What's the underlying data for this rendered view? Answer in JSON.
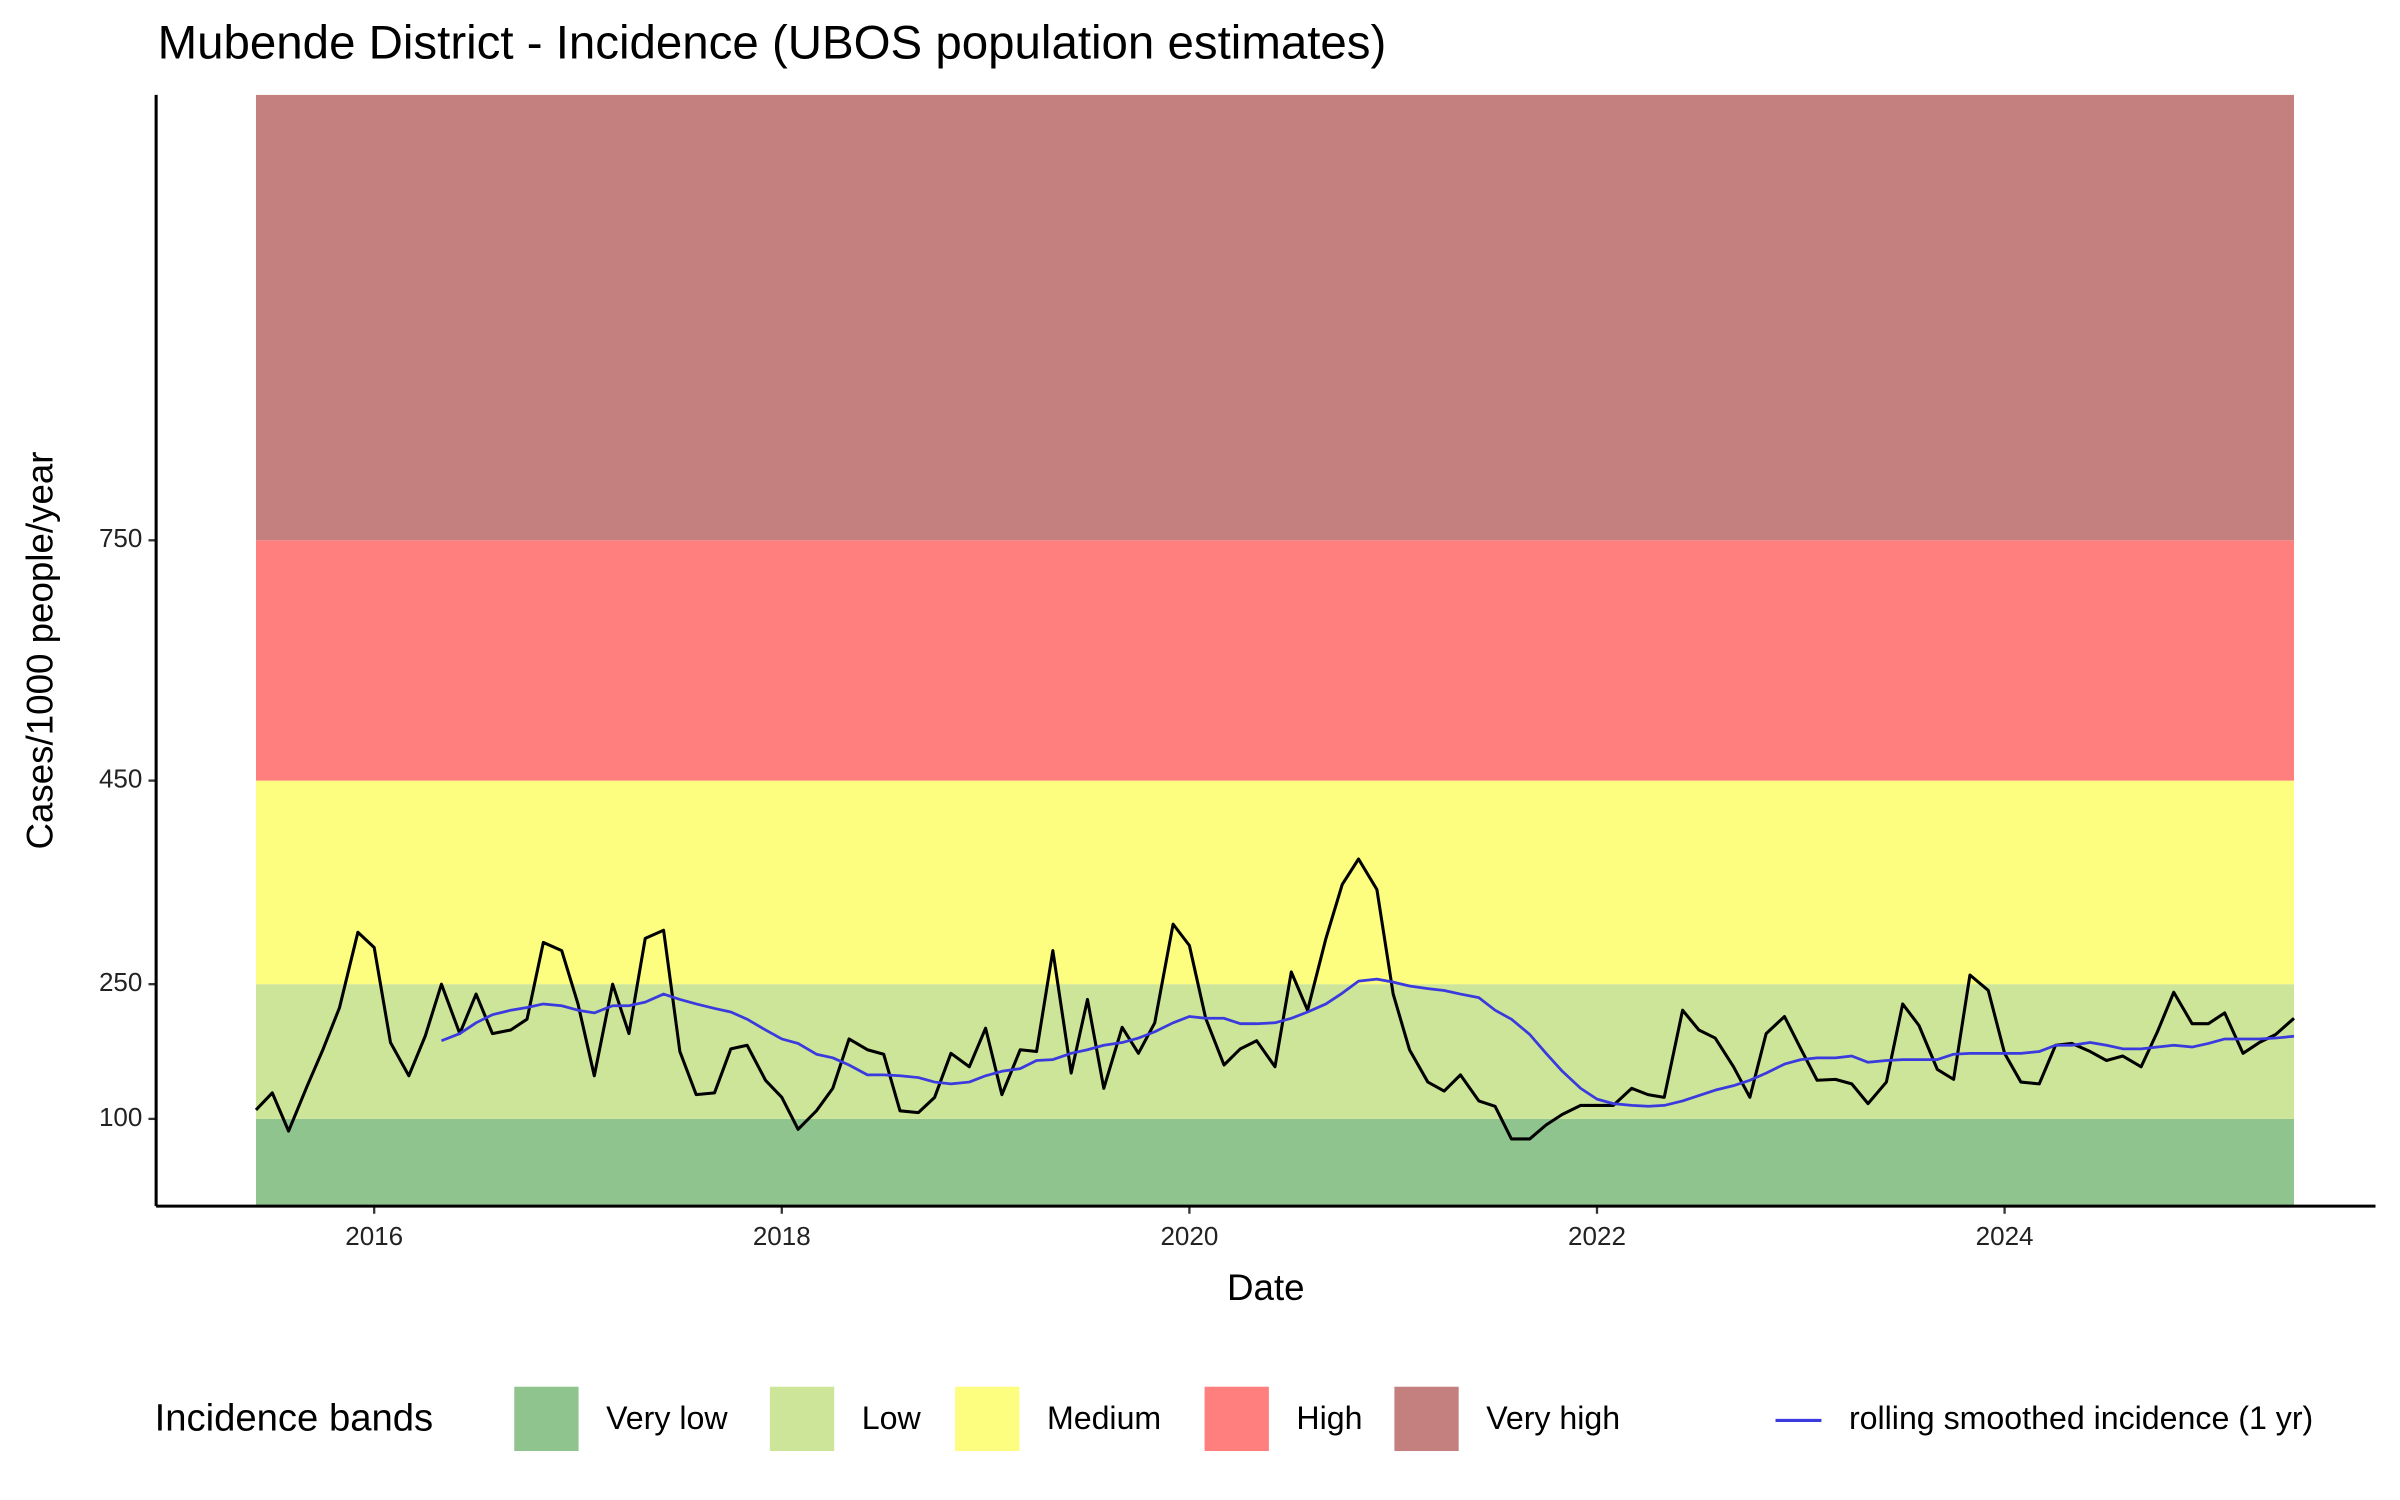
{
  "chart_data": {
    "type": "line",
    "title": "Mubende District - Incidence (UBOS population estimates)",
    "x_label": "Date",
    "y_label": "Cases/1000 people/year",
    "xlim": [
      2014.93,
      2025.82
    ],
    "xticks": [
      2016,
      2018,
      2020,
      2022,
      2024
    ],
    "ylim": [
      0,
      1300
    ],
    "yticks": [
      100,
      250,
      450,
      750
    ],
    "legend_title": "Incidence bands",
    "bands": [
      {
        "name": "Very low",
        "color": "#8fc48f",
        "from": 0,
        "to": 100
      },
      {
        "name": "Low",
        "color": "#cde598",
        "from": 100,
        "to": 250
      },
      {
        "name": "Medium",
        "color": "#fdfd7f",
        "from": 250,
        "to": 450
      },
      {
        "name": "High",
        "color": "#ff7f7f",
        "from": 450,
        "to": 750
      },
      {
        "name": "Very high",
        "color": "#c47f7f",
        "from": 750,
        "to": 1300
      }
    ],
    "x": [
      2015.42,
      2015.5,
      2015.58,
      2015.67,
      2015.75,
      2015.83,
      2015.92,
      2016,
      2016.08,
      2016.17,
      2016.25,
      2016.33,
      2016.42,
      2016.5,
      2016.58,
      2016.67,
      2016.75,
      2016.83,
      2016.92,
      2017,
      2017.08,
      2017.17,
      2017.25,
      2017.33,
      2017.42,
      2017.5,
      2017.58,
      2017.67,
      2017.75,
      2017.83,
      2017.92,
      2018,
      2018.08,
      2018.17,
      2018.25,
      2018.33,
      2018.42,
      2018.5,
      2018.58,
      2018.67,
      2018.75,
      2018.83,
      2018.92,
      2019,
      2019.08,
      2019.17,
      2019.25,
      2019.33,
      2019.42,
      2019.5,
      2019.58,
      2019.67,
      2019.75,
      2019.83,
      2019.92,
      2020,
      2020.08,
      2020.17,
      2020.25,
      2020.33,
      2020.42,
      2020.5,
      2020.58,
      2020.67,
      2020.75,
      2020.83,
      2020.92,
      2021,
      2021.08,
      2021.17,
      2021.25,
      2021.33,
      2021.42,
      2021.5,
      2021.58,
      2021.67,
      2021.75,
      2021.83,
      2021.92,
      2022,
      2022.08,
      2022.17,
      2022.25,
      2022.33,
      2022.42,
      2022.5,
      2022.58,
      2022.67,
      2022.75,
      2022.83,
      2022.92,
      2023,
      2023.08,
      2023.17,
      2023.25,
      2023.33,
      2023.42,
      2023.5,
      2023.58,
      2023.67,
      2023.75,
      2023.83,
      2023.92,
      2024,
      2024.08,
      2024.17,
      2024.25,
      2024.33,
      2024.42,
      2024.5,
      2024.58,
      2024.67,
      2024.75,
      2024.83,
      2024.92,
      2025,
      2025.08,
      2025.17,
      2025.25,
      2025.33,
      2025.42
    ],
    "series": [
      {
        "color": "#000000",
        "values": [
          110,
          129,
          86,
          136,
          178,
          224,
          301,
          286,
          185,
          148,
          192,
          250,
          195,
          239,
          195,
          199,
          211,
          291,
          283,
          228,
          148,
          250,
          195,
          295,
          303,
          175,
          127,
          129,
          178,
          182,
          143,
          124,
          88,
          109,
          134,
          189,
          177,
          172,
          109,
          107,
          124,
          173,
          158,
          201,
          127,
          177,
          175,
          283,
          151,
          233,
          134,
          202,
          173,
          207,
          309,
          288,
          212,
          160,
          178,
          187,
          158,
          262,
          221,
          295,
          348,
          373,
          343,
          239,
          177,
          141,
          131,
          149,
          120,
          114,
          77,
          77,
          93,
          105,
          115,
          115,
          115,
          134,
          127,
          124,
          221,
          199,
          190,
          158,
          124,
          195,
          214,
          178,
          143,
          144,
          139,
          117,
          141,
          228,
          204,
          155,
          144,
          259,
          243,
          173,
          141,
          139,
          182,
          184,
          175,
          165,
          170,
          158,
          197,
          241,
          206,
          206,
          218,
          173,
          185,
          194,
          212
        ]
      },
      {
        "name": "rolling smoothed incidence (1 yr)",
        "color": "#3a3ade",
        "values": [
          null,
          null,
          null,
          null,
          null,
          null,
          null,
          null,
          null,
          null,
          null,
          187,
          195,
          207,
          216,
          221,
          224,
          228,
          226,
          221,
          218,
          226,
          226,
          230,
          239,
          233,
          228,
          223,
          219,
          211,
          199,
          189,
          184,
          172,
          168,
          160,
          149,
          149,
          148,
          146,
          141,
          139,
          141,
          148,
          153,
          156,
          165,
          166,
          173,
          177,
          182,
          185,
          190,
          197,
          207,
          214,
          212,
          212,
          206,
          206,
          207,
          212,
          219,
          228,
          240,
          253,
          255,
          252,
          248,
          245,
          243,
          239,
          235,
          221,
          211,
          194,
          173,
          153,
          134,
          122,
          117,
          115,
          114,
          115,
          120,
          126,
          132,
          137,
          143,
          151,
          161,
          166,
          168,
          168,
          170,
          163,
          165,
          166,
          166,
          166,
          172,
          173,
          173,
          173,
          173,
          175,
          182,
          182,
          185,
          182,
          178,
          178,
          180,
          182,
          180,
          184,
          189,
          189,
          189,
          190,
          192
        ]
      }
    ]
  }
}
